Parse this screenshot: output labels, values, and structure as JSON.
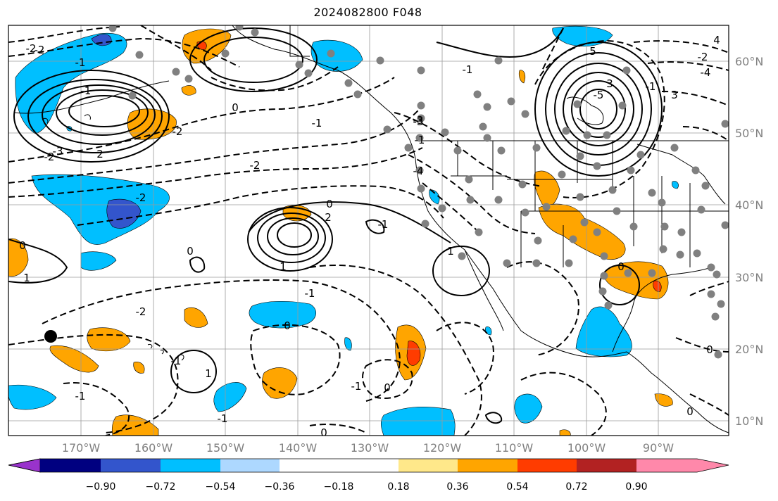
{
  "title": "2024082800 F048",
  "map": {
    "lon_labels": [
      "170°W",
      "160°W",
      "150°W",
      "140°W",
      "130°W",
      "120°W",
      "110°W",
      "100°W",
      "90°W"
    ],
    "lat_labels": [
      "60°N",
      "50°N",
      "40°N",
      "30°N",
      "20°N",
      "10°N"
    ],
    "contour_labels": [
      "-2",
      "-1",
      "0",
      "-1",
      "-2",
      "-3",
      "-4",
      "-5",
      "-2",
      "-1",
      "0",
      "1",
      "2",
      "-3",
      "3",
      "-4",
      "4",
      "5",
      "3",
      "-2",
      "-2",
      "-1",
      "0",
      "1",
      "2",
      "-1",
      "-1",
      "0",
      "-2",
      "0",
      "1",
      "-2",
      "-1",
      "1",
      "0",
      "-1",
      "-1",
      "0",
      "-1",
      "-1",
      "0",
      "-3",
      "-2",
      "0",
      "-1",
      "0"
    ]
  },
  "colorbar": {
    "colors": [
      "#9933cc",
      "#000080",
      "#3355cc",
      "#00bfff",
      "#add8ff",
      "#ffffff",
      "#ffe88a",
      "#ffa500",
      "#ff3c00",
      "#b22222",
      "#ff88aa"
    ],
    "tick_labels": [
      "−0.90",
      "−0.72",
      "−0.54",
      "−0.36",
      "−0.18",
      "0.18",
      "0.36",
      "0.54",
      "0.72",
      "0.90"
    ]
  }
}
